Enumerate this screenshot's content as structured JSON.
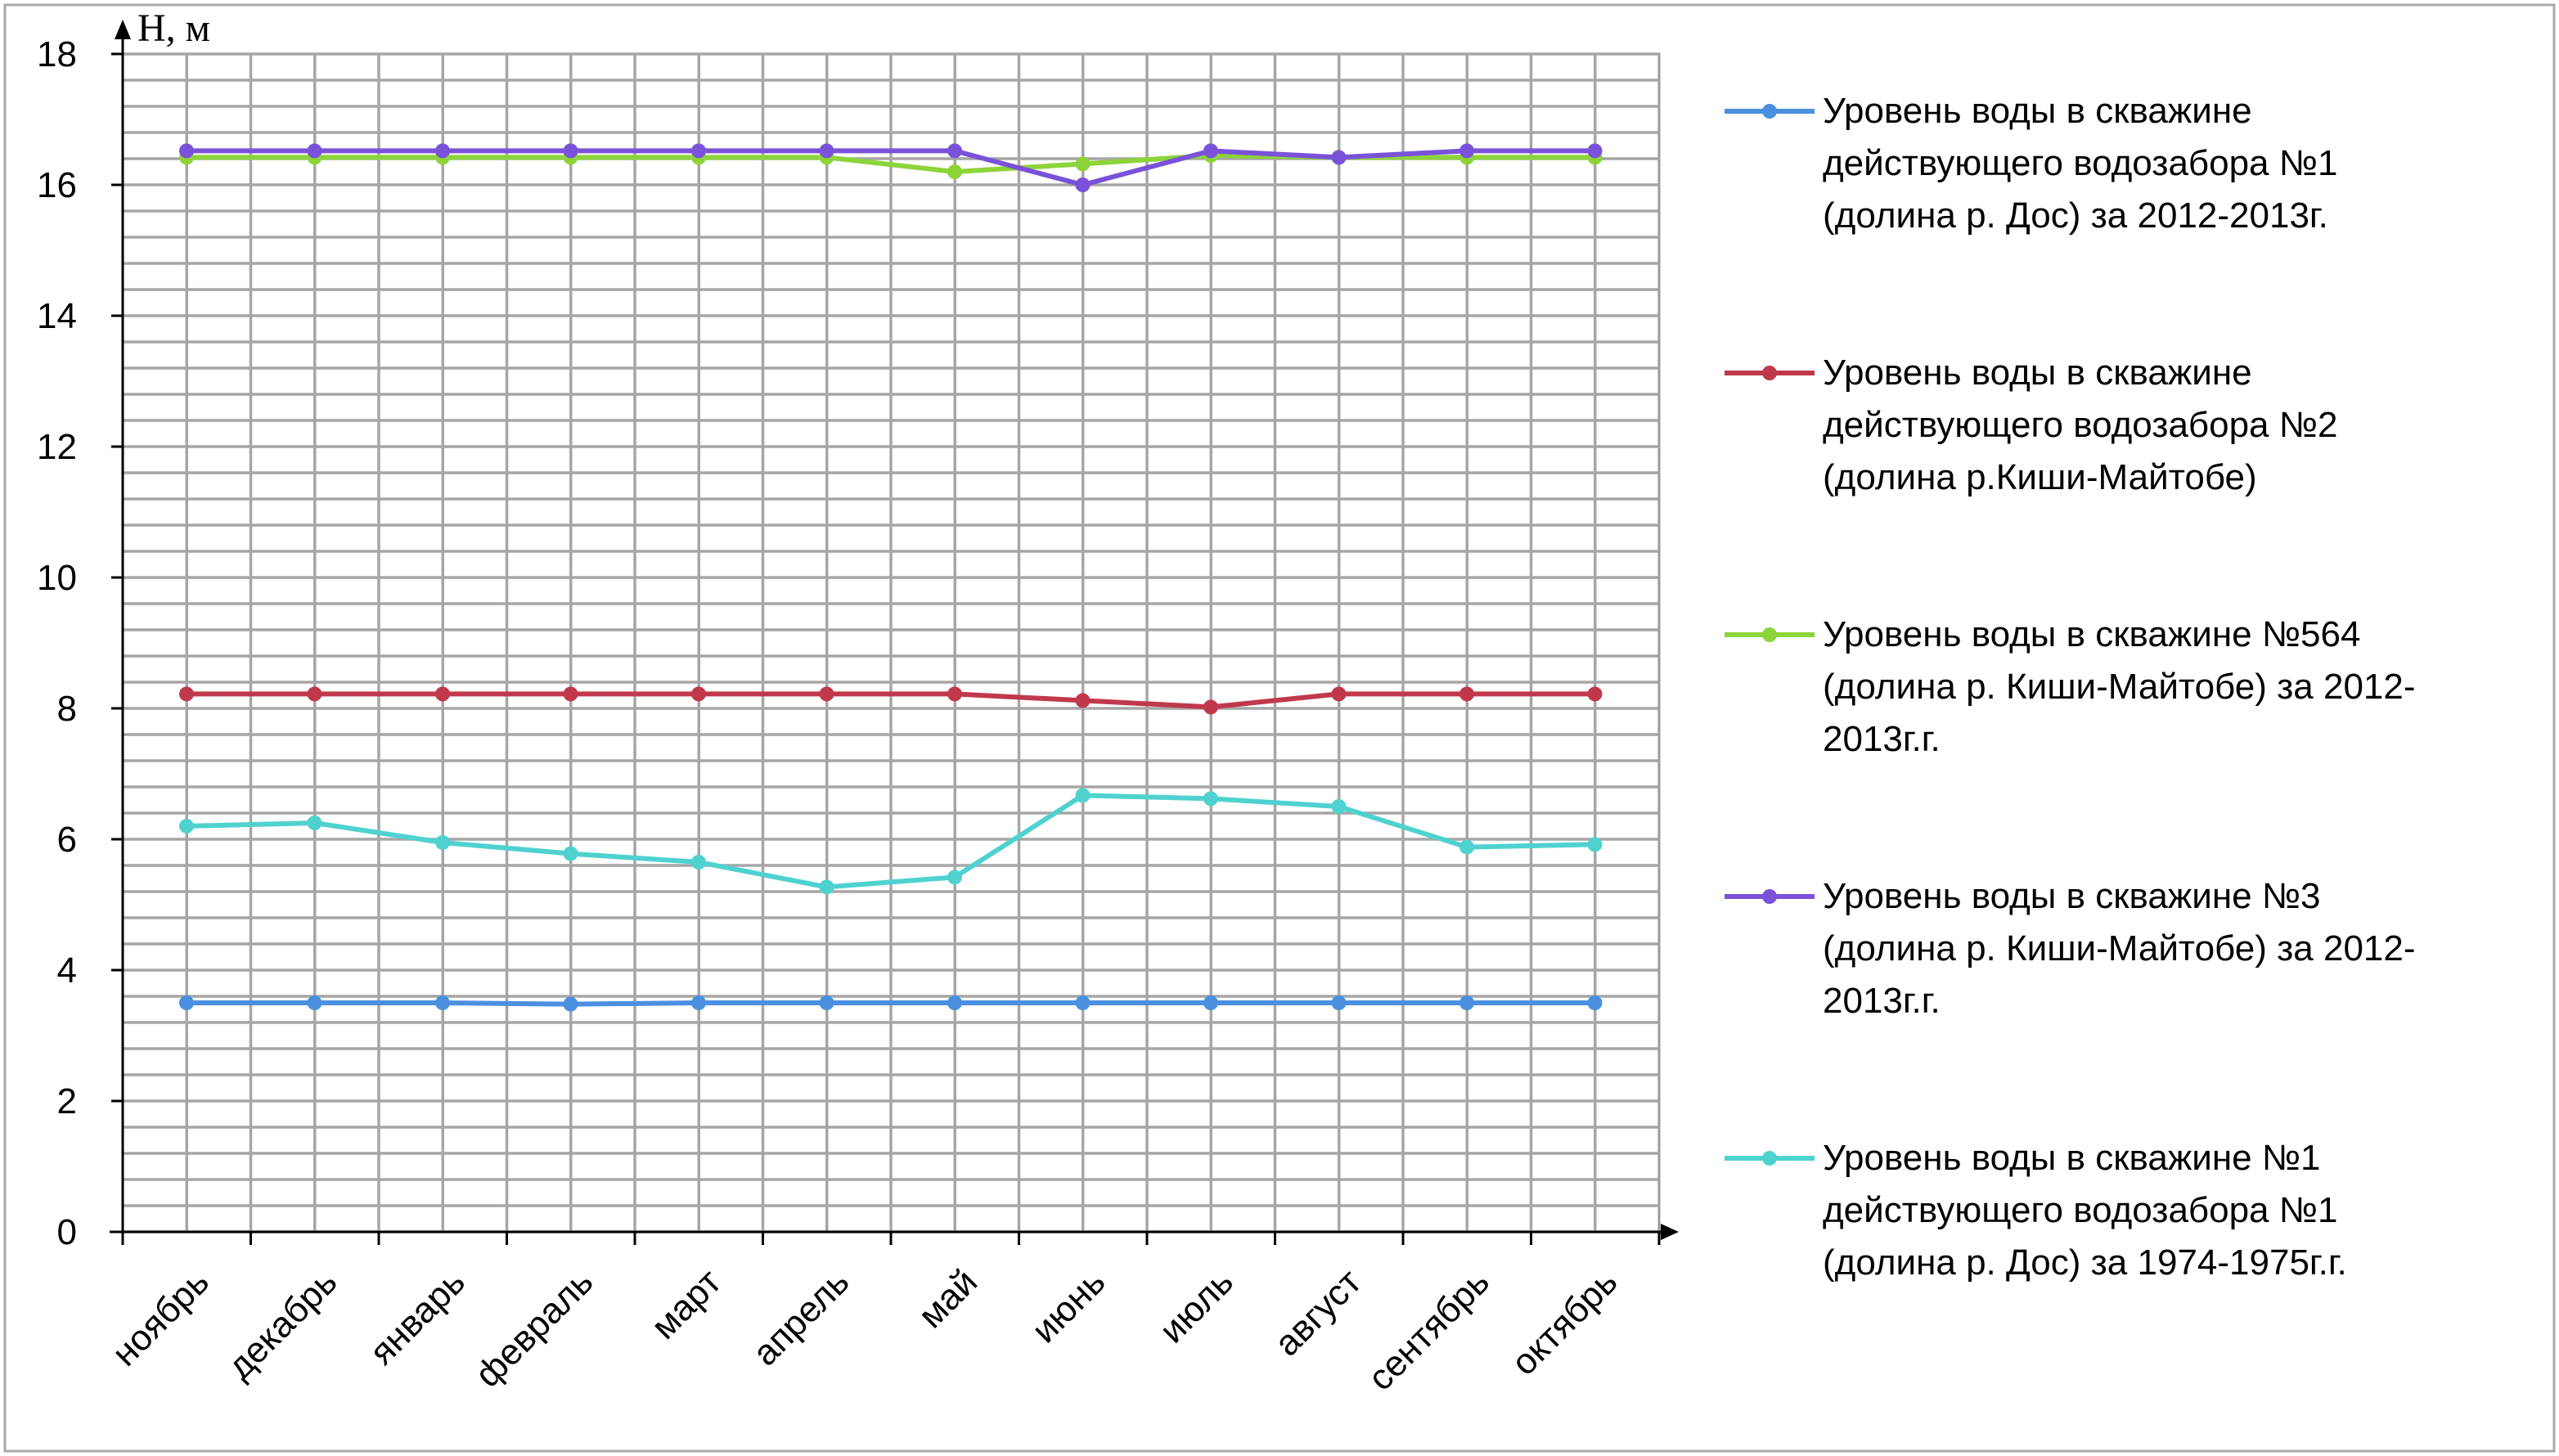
{
  "chart_data": {
    "type": "line",
    "title": "",
    "xlabel": "",
    "ylabel": "Н, м",
    "ylim": [
      0,
      18
    ],
    "yticks": [
      "0",
      "2",
      "4",
      "6",
      "8",
      "10",
      "12",
      "14",
      "16",
      "18"
    ],
    "grid": true,
    "legend_position": "right",
    "categories": [
      "ноябрь",
      "декабрь",
      "январь",
      "февраль",
      "март",
      "апрель",
      "май",
      "июнь",
      "июль",
      "август",
      "сентябрь",
      "октябрь"
    ],
    "series": [
      {
        "name": "Уровень воды в скважине действующего водозабора №1 (долина р. Дос) за 2012-2013г.",
        "legend_lines": [
          "Уровень воды в скважине",
          "действующего водозабора №1",
          "(долина р. Дос) за 2012-2013г."
        ],
        "color": "#4a8fe0",
        "values": [
          3.5,
          3.5,
          3.5,
          3.48,
          3.5,
          3.5,
          3.5,
          3.5,
          3.5,
          3.5,
          3.5,
          3.5
        ]
      },
      {
        "name": "Уровень воды в скважине действующего водозабора №2 (долина р.Киши-Майтобе)",
        "legend_lines": [
          "Уровень воды в скважине",
          "действующего водозабора №2",
          "(долина р.Киши-Майтобе)"
        ],
        "color": "#c0394b",
        "values": [
          8.22,
          8.22,
          8.22,
          8.22,
          8.22,
          8.22,
          8.22,
          8.12,
          8.02,
          8.22,
          8.22,
          8.22
        ]
      },
      {
        "name": "Уровень воды в скважине №564 (долина р. Киши-Майтобе) за 2012-2013г.г.",
        "legend_lines": [
          "Уровень воды в скважине №564",
          "(долина р. Киши-Майтобе) за 2012-",
          "2013г.г."
        ],
        "color": "#8cd43a",
        "values": [
          16.42,
          16.42,
          16.42,
          16.42,
          16.42,
          16.42,
          16.2,
          16.32,
          16.45,
          16.42,
          16.42,
          16.42
        ]
      },
      {
        "name": "Уровень воды в скважине №3 (долина р. Киши-Майтобе) за 2012-2013г.г.",
        "legend_lines": [
          "Уровень воды в скважине №3",
          "(долина р. Киши-Майтобе) за 2012-",
          "2013г.г."
        ],
        "color": "#7a52d9",
        "values": [
          16.52,
          16.52,
          16.52,
          16.52,
          16.52,
          16.52,
          16.52,
          16.0,
          16.52,
          16.42,
          16.52,
          16.52
        ]
      },
      {
        "name": "Уровень воды в скважине №1 действующего водозабора №1 (долина р. Дос) за 1974-1975г.г.",
        "legend_lines": [
          "Уровень воды в скважине №1",
          "действующего водозабора №1",
          "(долина р. Дос) за 1974-1975г.г."
        ],
        "color": "#4fd2cf",
        "values": [
          6.2,
          6.25,
          5.95,
          5.78,
          5.65,
          5.27,
          5.42,
          6.67,
          6.62,
          6.5,
          5.88,
          5.92
        ]
      }
    ]
  }
}
